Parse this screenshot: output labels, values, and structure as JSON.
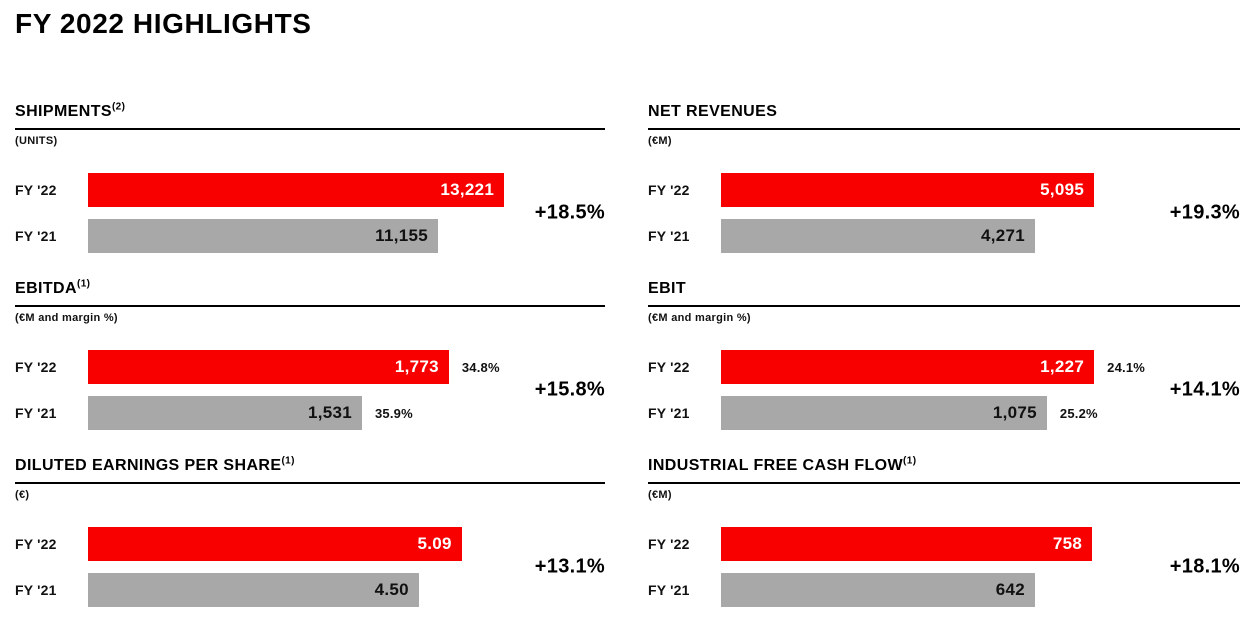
{
  "page": {
    "title": "FY 2022 HIGHLIGHTS"
  },
  "colors": {
    "bar_current": "#f90000",
    "bar_prior": "#a8a8a8",
    "text": "#111111",
    "value_on_current": "#ffffff",
    "value_on_prior": "#111111"
  },
  "chart_data": [
    {
      "type": "bar",
      "title": "SHIPMENTS",
      "footnote": "(2)",
      "unit_label": "(UNITS)",
      "categories": [
        "FY '22",
        "FY '21"
      ],
      "values": [
        13221,
        11155
      ],
      "value_labels": [
        "13,221",
        "11,155"
      ],
      "margin_labels": null,
      "change_label": "+18.5%",
      "bar_width_pct": [
        80.5,
        67.7
      ],
      "orientation": "horizontal",
      "grid": false,
      "legend": false
    },
    {
      "type": "bar",
      "title": "NET REVENUES",
      "footnote": "",
      "unit_label": "(€M)",
      "categories": [
        "FY '22",
        "FY '21"
      ],
      "values": [
        5095,
        4271
      ],
      "value_labels": [
        "5,095",
        "4,271"
      ],
      "margin_labels": null,
      "change_label": "+19.3%",
      "bar_width_pct": [
        71.9,
        60.5
      ],
      "orientation": "horizontal",
      "grid": false,
      "legend": false
    },
    {
      "type": "bar",
      "title": "EBITDA",
      "footnote": "(1)",
      "unit_label": "(€M and margin %)",
      "categories": [
        "FY '22",
        "FY '21"
      ],
      "values": [
        1773,
        1531
      ],
      "value_labels": [
        "1,773",
        "1,531"
      ],
      "margin_labels": [
        "34.8%",
        "35.9%"
      ],
      "change_label": "+15.8%",
      "bar_width_pct": [
        69.8,
        53.0
      ],
      "orientation": "horizontal",
      "grid": false,
      "legend": false
    },
    {
      "type": "bar",
      "title": "EBIT",
      "footnote": "",
      "unit_label": "(€M and margin %)",
      "categories": [
        "FY '22",
        "FY '21"
      ],
      "values": [
        1227,
        1075
      ],
      "value_labels": [
        "1,227",
        "1,075"
      ],
      "margin_labels": [
        "24.1%",
        "25.2%"
      ],
      "change_label": "+14.1%",
      "bar_width_pct": [
        71.9,
        62.8
      ],
      "orientation": "horizontal",
      "grid": false,
      "legend": false
    },
    {
      "type": "bar",
      "title": "DILUTED EARNINGS PER SHARE",
      "footnote": "(1)",
      "unit_label": "(€)",
      "categories": [
        "FY '22",
        "FY '21"
      ],
      "values": [
        5.09,
        4.5
      ],
      "value_labels": [
        "5.09",
        "4.50"
      ],
      "margin_labels": null,
      "change_label": "+13.1%",
      "bar_width_pct": [
        72.3,
        64.0
      ],
      "orientation": "horizontal",
      "grid": false,
      "legend": false
    },
    {
      "type": "bar",
      "title": "INDUSTRIAL FREE CASH FLOW",
      "footnote": "(1)",
      "unit_label": "(€M)",
      "categories": [
        "FY '22",
        "FY '21"
      ],
      "values": [
        758,
        642
      ],
      "value_labels": [
        "758",
        "642"
      ],
      "margin_labels": null,
      "change_label": "+18.1%",
      "bar_width_pct": [
        71.5,
        60.5
      ],
      "orientation": "horizontal",
      "grid": false,
      "legend": false
    }
  ]
}
